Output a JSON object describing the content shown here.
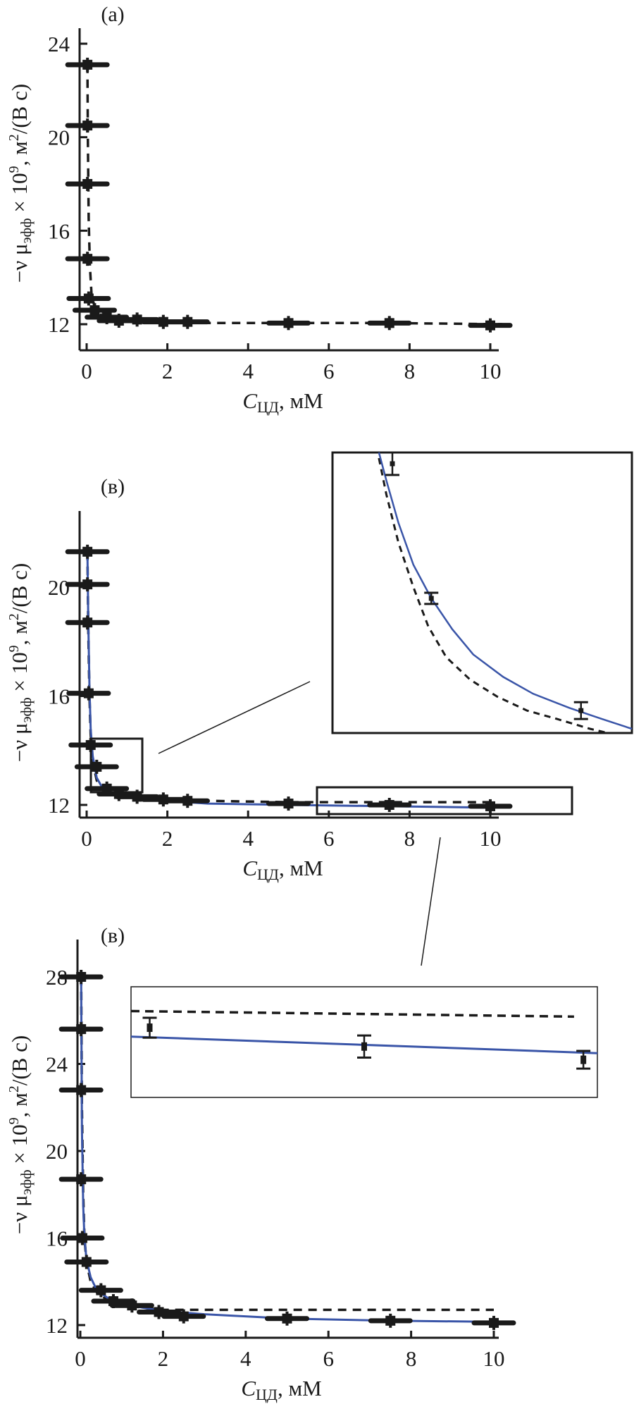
{
  "colors": {
    "axis": "#1a1a1a",
    "fit_line": "#3a55a8",
    "dashed_line": "#1a1a1a",
    "marker": "#1a1a1a"
  },
  "chart_data": [
    {
      "id": "a",
      "type": "scatter",
      "panel_label": "(a)",
      "title": "",
      "xlabel_main": "C",
      "xlabel_sub": "ЦД",
      "xlabel_rest": ", мМ",
      "ylabel": "−ν μэфф × 10⁹, м²/(В с)",
      "ylabel_parts": {
        "prefix": "−ν μ",
        "sub": "эфф",
        "times": " × 10",
        "sup": "9",
        "unit1": ", м",
        "unit_sup": "2",
        "unit2": "/(В с)"
      },
      "xlim": [
        -0.35,
        10.4
      ],
      "ylim": [
        11.3,
        25.2
      ],
      "xticks": [
        0,
        2,
        4,
        6,
        8,
        10
      ],
      "yticks": [
        12,
        16,
        20,
        24
      ],
      "grid": false,
      "series": [
        {
          "name": "experimental",
          "style": "marker-xerr",
          "x": [
            0.02,
            0.02,
            0.02,
            0.02,
            0.05,
            0.2,
            0.5,
            0.8,
            1.25,
            1.9,
            2.5,
            5.0,
            7.5,
            10.0
          ],
          "y": [
            23.1,
            20.5,
            18.0,
            14.8,
            13.1,
            12.6,
            12.3,
            12.15,
            12.2,
            12.1,
            12.1,
            12.05,
            12.05,
            11.95
          ]
        },
        {
          "name": "model-dashed",
          "style": "dashed",
          "x": [
            0.02,
            0.03,
            0.05,
            0.08,
            0.12,
            0.2,
            0.35,
            0.6,
            1.0,
            2.0,
            3.0,
            5.0,
            7.5,
            10.3
          ],
          "y": [
            23.1,
            20.0,
            16.5,
            14.5,
            13.3,
            12.7,
            12.4,
            12.25,
            12.15,
            12.1,
            12.05,
            12.05,
            12.05,
            12.0
          ]
        }
      ]
    },
    {
      "id": "b",
      "type": "scatter",
      "panel_label": "(в)",
      "xlabel_main": "C",
      "xlabel_sub": "ЦД",
      "xlabel_rest": ", мМ",
      "ylabel_parts": {
        "prefix": "−ν μ",
        "sub": "эфф",
        "times": " × 10",
        "sup": "9",
        "unit1": ", м",
        "unit_sup": "2",
        "unit2": "/(В с)"
      },
      "xlim": [
        -0.35,
        10.4
      ],
      "ylim": [
        11.6,
        23.0
      ],
      "xticks": [
        0,
        2,
        4,
        6,
        8,
        10
      ],
      "yticks": [
        12,
        16,
        20
      ],
      "grid": false,
      "series": [
        {
          "name": "experimental",
          "style": "marker-xerr",
          "x": [
            0.02,
            0.02,
            0.02,
            0.05,
            0.1,
            0.25,
            0.5,
            0.8,
            1.25,
            1.9,
            2.5,
            5.0,
            7.5,
            10.0
          ],
          "y": [
            21.3,
            20.1,
            18.7,
            16.1,
            14.2,
            13.4,
            12.6,
            12.4,
            12.3,
            12.2,
            12.15,
            12.05,
            12.0,
            11.95
          ]
        },
        {
          "name": "model-dashed",
          "style": "dashed",
          "x": [
            0.02,
            0.04,
            0.07,
            0.1,
            0.15,
            0.25,
            0.4,
            0.6,
            1.0,
            2.0,
            3.0,
            5.0,
            7.5,
            10.0
          ],
          "y": [
            21.3,
            18.5,
            16.0,
            14.6,
            13.6,
            12.9,
            12.55,
            12.4,
            12.3,
            12.2,
            12.15,
            12.1,
            12.1,
            12.1
          ]
        },
        {
          "name": "model-fit",
          "style": "solid-blue",
          "x": [
            0.02,
            0.04,
            0.07,
            0.1,
            0.15,
            0.25,
            0.4,
            0.6,
            1.0,
            2.0,
            3.0,
            5.0,
            7.5,
            10.0
          ],
          "y": [
            21.3,
            18.8,
            16.3,
            14.8,
            13.8,
            13.0,
            12.6,
            12.4,
            12.3,
            12.15,
            12.05,
            12.0,
            11.95,
            11.9
          ]
        }
      ],
      "insets": [
        {
          "name": "inset-low-concentration",
          "note": "zoom of region x≈-0.1–0.9, y≈12.5–14.4"
        },
        {
          "name": "inset-high-concentration",
          "note": "zoom of region x≈4.7–10.3, y≈11.7–12.6"
        }
      ]
    },
    {
      "id": "c",
      "type": "scatter",
      "panel_label": "(в)",
      "xlabel_main": "C",
      "xlabel_sub": "ЦД",
      "xlabel_rest": ", мМ",
      "ylabel_parts": {
        "prefix": "−ν μ",
        "sub": "эфф",
        "times": " × 10",
        "sup": "9",
        "unit1": ", м",
        "unit_sup": "2",
        "unit2": "/(В с)"
      },
      "xlim": [
        -0.35,
        10.4
      ],
      "ylim": [
        11.3,
        30.0
      ],
      "xticks": [
        0,
        2,
        4,
        6,
        8,
        10
      ],
      "yticks": [
        12,
        16,
        20,
        24,
        28
      ],
      "grid": false,
      "series": [
        {
          "name": "experimental",
          "style": "marker-xerr",
          "x": [
            0.02,
            0.02,
            0.02,
            0.02,
            0.05,
            0.15,
            0.5,
            0.8,
            1.25,
            1.9,
            2.5,
            5.0,
            7.5,
            10.0
          ],
          "y": [
            28.0,
            25.6,
            22.8,
            18.7,
            16.0,
            14.9,
            13.6,
            13.1,
            12.9,
            12.6,
            12.4,
            12.3,
            12.2,
            12.1
          ]
        },
        {
          "name": "model-dashed",
          "style": "dashed",
          "x": [
            0.02,
            0.04,
            0.07,
            0.1,
            0.15,
            0.25,
            0.4,
            0.7,
            1.0,
            1.5,
            2.0,
            3.0,
            5.0,
            7.5,
            10.0
          ],
          "y": [
            28.0,
            22.0,
            18.0,
            16.0,
            14.9,
            14.0,
            13.5,
            13.1,
            12.95,
            12.8,
            12.7,
            12.7,
            12.7,
            12.7,
            12.7
          ]
        },
        {
          "name": "model-fit",
          "style": "solid-blue",
          "x": [
            0.02,
            0.04,
            0.07,
            0.1,
            0.15,
            0.25,
            0.4,
            0.7,
            1.0,
            1.5,
            2.0,
            3.0,
            5.0,
            7.5,
            10.0
          ],
          "y": [
            28.0,
            21.0,
            17.5,
            16.0,
            15.0,
            14.2,
            13.6,
            13.2,
            13.0,
            12.8,
            12.65,
            12.5,
            12.3,
            12.2,
            12.15
          ]
        }
      ]
    }
  ],
  "inset_b_low": {
    "points": [
      {
        "x": 0.2,
        "y": 0.04,
        "err": 0.04
      },
      {
        "x": 0.33,
        "y": 0.52,
        "err": 0.02
      },
      {
        "x": 0.83,
        "y": 0.92,
        "err": 0.03
      }
    ],
    "fit": [
      [
        0.155,
        0.0
      ],
      [
        0.18,
        0.1
      ],
      [
        0.22,
        0.25
      ],
      [
        0.27,
        0.4
      ],
      [
        0.33,
        0.52
      ],
      [
        0.4,
        0.63
      ],
      [
        0.47,
        0.72
      ],
      [
        0.57,
        0.8
      ],
      [
        0.67,
        0.86
      ],
      [
        0.79,
        0.91
      ],
      [
        0.9,
        0.95
      ],
      [
        1.0,
        0.985
      ]
    ],
    "dashed": [
      [
        0.155,
        0.02
      ],
      [
        0.18,
        0.15
      ],
      [
        0.22,
        0.32
      ],
      [
        0.27,
        0.48
      ],
      [
        0.32,
        0.62
      ],
      [
        0.38,
        0.73
      ],
      [
        0.46,
        0.81
      ],
      [
        0.55,
        0.87
      ],
      [
        0.65,
        0.92
      ],
      [
        0.75,
        0.95
      ],
      [
        0.86,
        0.985
      ],
      [
        0.92,
        1.0
      ]
    ]
  },
  "inset_c_high": {
    "points": [
      {
        "x": 0.04,
        "y": 0.37,
        "err": 0.09
      },
      {
        "x": 0.5,
        "y": 0.54,
        "err": 0.1
      },
      {
        "x": 0.97,
        "y": 0.66,
        "err": 0.08
      }
    ],
    "fit": [
      [
        0.0,
        0.45
      ],
      [
        1.0,
        0.6
      ]
    ],
    "dashed": [
      [
        0.0,
        0.22
      ],
      [
        0.95,
        0.27
      ]
    ]
  }
}
